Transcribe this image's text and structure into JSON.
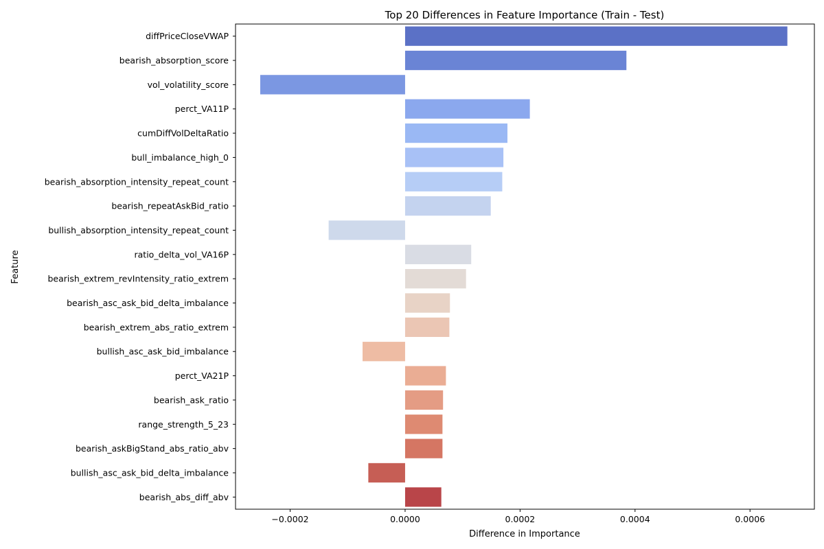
{
  "chart_data": {
    "type": "bar",
    "orientation": "horizontal",
    "title": "Top 20 Differences in Feature Importance (Train - Test)",
    "xlabel": "Difference in Importance",
    "ylabel": "Feature",
    "xlim": [
      -0.000295,
      0.000712
    ],
    "xticks": [
      -0.0002,
      0.0,
      0.0002,
      0.0004,
      0.0006
    ],
    "xtick_labels": [
      "−0.0002",
      "0.0000",
      "0.0002",
      "0.0004",
      "0.0006"
    ],
    "grid": false,
    "palette": "coolwarm",
    "categories": [
      "diffPriceCloseVWAP",
      "bearish_absorption_score",
      "vol_volatility_score",
      "perct_VA11P",
      "cumDiffVolDeltaRatio",
      "bull_imbalance_high_0",
      "bearish_absorption_intensity_repeat_count",
      "bearish_repeatAskBid_ratio",
      "bullish_absorption_intensity_repeat_count",
      "ratio_delta_vol_VA16P",
      "bearish_extrem_revIntensity_ratio_extrem",
      "bearish_asc_ask_bid_delta_imbalance",
      "bearish_extrem_abs_ratio_extrem",
      "bullish_asc_ask_bid_imbalance",
      "perct_VA21P",
      "bearish_ask_ratio",
      "range_strength_5_23",
      "bearish_askBigStand_abs_ratio_abv",
      "bullish_asc_ask_bid_delta_imbalance",
      "bearish_abs_diff_abv"
    ],
    "values": [
      0.000665,
      0.000385,
      -0.000252,
      0.000217,
      0.000178,
      0.000171,
      0.000169,
      0.000149,
      -0.000133,
      0.000115,
      0.000106,
      7.8e-05,
      7.7e-05,
      -7.4e-05,
      7.1e-05,
      6.6e-05,
      6.5e-05,
      6.5e-05,
      -6.4e-05,
      6.3e-05
    ],
    "colors": [
      "#5b71c6",
      "#6a84d5",
      "#7b97e2",
      "#8ba8ee",
      "#9ab8f4",
      "#a8c1f6",
      "#b6cdf6",
      "#c4d3ef",
      "#ced9eb",
      "#d9dce4",
      "#e3dbd6",
      "#e8d3c6",
      "#ebc6b4",
      "#eebca4",
      "#eaad94",
      "#e49c84",
      "#de8a72",
      "#d57663",
      "#c65e55",
      "#b94549"
    ]
  }
}
